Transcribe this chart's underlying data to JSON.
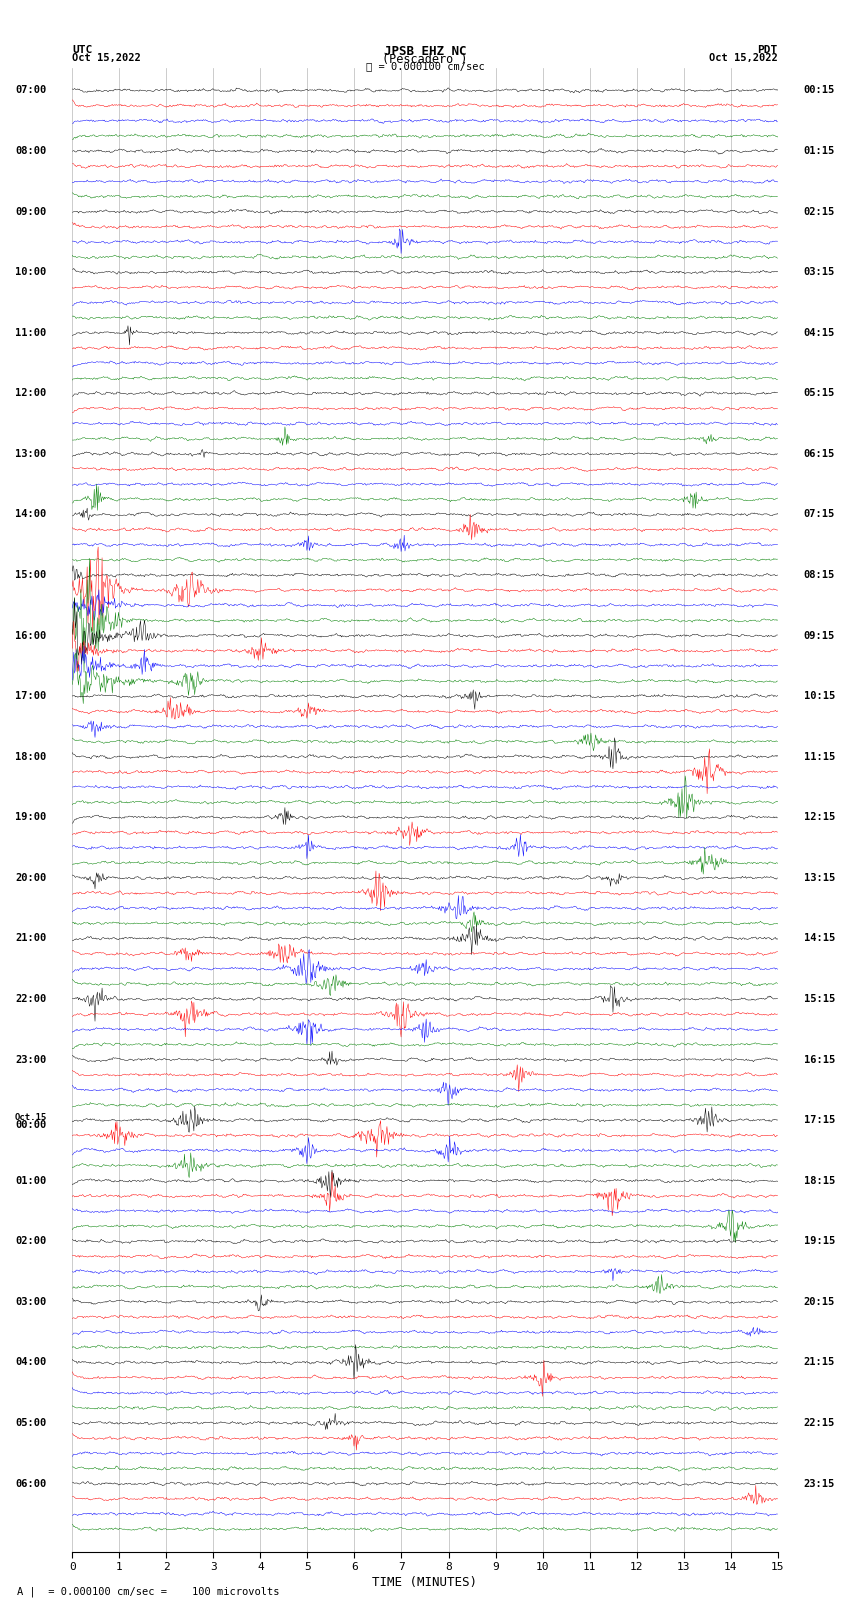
{
  "title_line1": "JPSB EHZ NC",
  "title_line2": "(Pescadero )",
  "scale_label": "= 0.000100 cm/sec",
  "left_header_line1": "UTC",
  "left_header_line2": "Oct 15,2022",
  "right_header_line1": "PDT",
  "right_header_line2": "Oct 15,2022",
  "xlabel": "TIME (MINUTES)",
  "bottom_label": "= 0.000100 cm/sec =    100 microvolts",
  "x_min": 0,
  "x_max": 15,
  "x_ticks": [
    0,
    1,
    2,
    3,
    4,
    5,
    6,
    7,
    8,
    9,
    10,
    11,
    12,
    13,
    14,
    15
  ],
  "background_color": "#ffffff",
  "grid_color": "#888888",
  "trace_colors": [
    "#000000",
    "#ff0000",
    "#0000ff",
    "#008000"
  ],
  "utc_labels": [
    "07:00",
    "08:00",
    "09:00",
    "10:00",
    "11:00",
    "12:00",
    "13:00",
    "14:00",
    "15:00",
    "16:00",
    "17:00",
    "18:00",
    "19:00",
    "20:00",
    "21:00",
    "22:00",
    "23:00",
    "Oct.15\n00:00",
    "01:00",
    "02:00",
    "03:00",
    "04:00",
    "05:00",
    "06:00"
  ],
  "pdt_labels": [
    "00:15",
    "01:15",
    "02:15",
    "03:15",
    "04:15",
    "05:15",
    "06:15",
    "07:15",
    "08:15",
    "09:15",
    "10:15",
    "11:15",
    "12:15",
    "13:15",
    "14:15",
    "15:15",
    "16:15",
    "17:15",
    "18:15",
    "19:15",
    "20:15",
    "21:15",
    "22:15",
    "23:15"
  ],
  "num_traces": 96,
  "traces_per_hour": 4,
  "noise_seed": 42
}
